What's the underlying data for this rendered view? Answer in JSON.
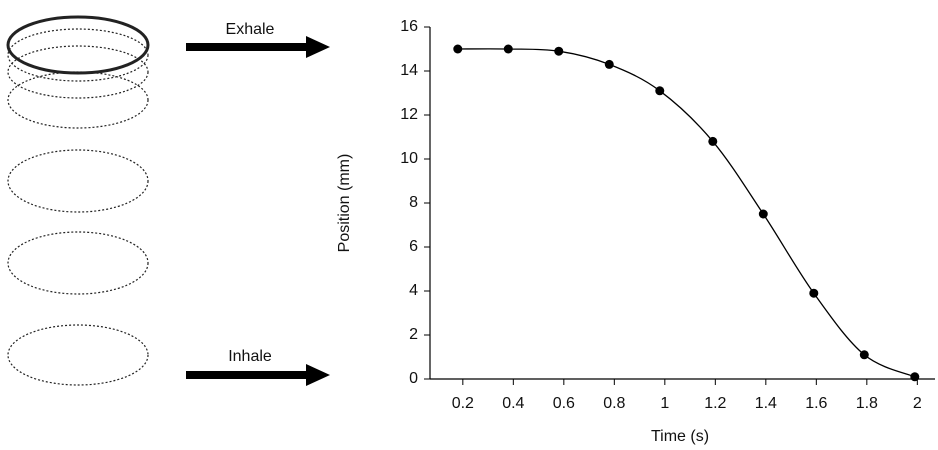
{
  "chart_data": {
    "type": "line",
    "x_label": "Time (s)",
    "y_label": "Position (mm)",
    "annotations": [
      "Exhale",
      "Inhale"
    ],
    "x": [
      0.18,
      0.38,
      0.58,
      0.78,
      0.98,
      1.19,
      1.39,
      1.59,
      1.79,
      1.99
    ],
    "values": [
      15,
      15,
      14.9,
      14.3,
      13.1,
      10.8,
      7.5,
      3.9,
      1.1,
      0.1
    ],
    "color": "#000000",
    "xlim": [
      0.07,
      2.07
    ],
    "xticks": [
      0.2,
      0.4,
      0.6,
      0.8,
      1,
      1.2,
      1.4,
      1.6,
      1.8,
      2
    ],
    "ylim": [
      0,
      16
    ],
    "yticks": [
      0,
      2,
      4,
      6,
      8,
      10,
      12,
      14,
      16
    ],
    "grid": false
  }
}
